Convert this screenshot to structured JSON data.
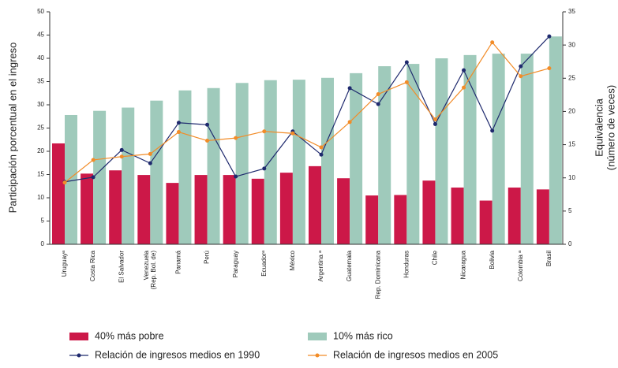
{
  "chart_data": {
    "type": "bar-line",
    "categories": [
      "Uruguayᵃ",
      "Costa Rica",
      "El Salvador",
      [
        "Venezuela",
        "(Rep. Bol. de)"
      ],
      "Panamá",
      "Perú",
      "Paraguay",
      "Ecuadorᵃ",
      "México",
      "Argentina ᵃ",
      "Guatemala",
      "Rep. Dominicana",
      "Honduras",
      "Chile",
      "Nicaragua",
      "Bolivia",
      "Colombia ᵃ",
      "Brasil"
    ],
    "series": [
      {
        "name": "40% más pobre",
        "type": "bar",
        "color": "#cc1848",
        "values": [
          21.7,
          15.2,
          15.9,
          14.9,
          13.2,
          14.9,
          14.9,
          14.1,
          15.4,
          16.8,
          14.2,
          10.5,
          10.6,
          13.7,
          12.2,
          9.4,
          12.2,
          11.8
        ]
      },
      {
        "name": "10% más rico",
        "type": "bar",
        "color": "#9fcabb",
        "values": [
          27.8,
          28.7,
          29.4,
          30.9,
          33.1,
          33.6,
          34.7,
          35.3,
          35.4,
          35.8,
          36.8,
          38.3,
          38.8,
          40.0,
          40.7,
          41.0,
          41.0,
          44.7
        ]
      },
      {
        "name": "Relación de ingresos medios en 1990",
        "type": "line",
        "axis": "y2",
        "color": "#1f2a6e",
        "values": [
          9.4,
          10.1,
          14.2,
          12.2,
          18.3,
          18.0,
          10.2,
          11.4,
          17.0,
          13.5,
          23.5,
          21.1,
          27.4,
          18.1,
          26.2,
          17.1,
          26.8,
          31.3
        ]
      },
      {
        "name": "Relación de ingresos medios en 2005",
        "type": "line",
        "axis": "y2",
        "color": "#f28c28",
        "values": [
          9.3,
          12.7,
          13.2,
          13.6,
          16.9,
          15.6,
          16.0,
          17.0,
          16.7,
          14.6,
          18.4,
          22.6,
          24.4,
          18.8,
          23.6,
          30.4,
          25.3,
          26.5
        ]
      }
    ],
    "ylabel": "Participación porcentual en el ingreso",
    "y2label": [
      "Equivalencia",
      "(número de veces)"
    ],
    "ylim": [
      0,
      50
    ],
    "yticks": [
      0,
      5,
      10,
      15,
      20,
      25,
      30,
      35,
      40,
      45,
      50
    ],
    "y2lim": [
      0,
      35
    ],
    "y2ticks": [
      0,
      5,
      10,
      15,
      20,
      25,
      30,
      35
    ],
    "legend": "bottom"
  }
}
